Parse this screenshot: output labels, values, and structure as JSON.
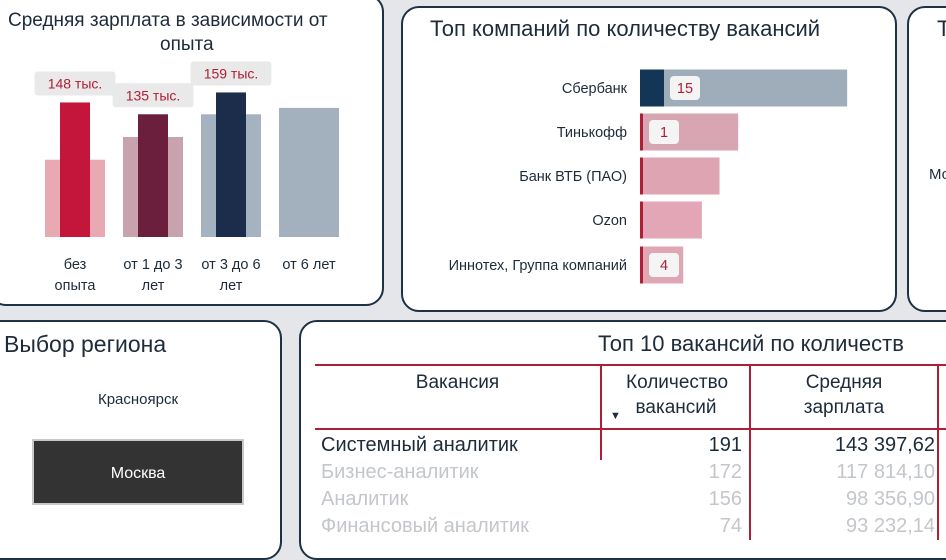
{
  "salary_card": {
    "title_line1": "Средняя зарплата в зависимости от",
    "title_line2": "опыта"
  },
  "companies_card": {
    "title": "Топ компаний по количеству вакансий"
  },
  "clipped_card": {
    "title_fragment": "Т",
    "label_fragment": "Мо"
  },
  "region_card": {
    "title": "Выбор региона",
    "options": [
      "Красноярск",
      "Москва"
    ],
    "selected": "Москва"
  },
  "table_card": {
    "title": "Топ 10 вакансий по количеств",
    "columns": [
      "Вакансия",
      "Количество вакансий",
      "Средняя зарплата"
    ],
    "sort_indicator": "▼",
    "rows": [
      {
        "name": "Системный аналитик",
        "count": "191",
        "salary": "143 397,62"
      },
      {
        "name": "Бизнес-аналитик",
        "count": "172",
        "salary": "117 814,10"
      },
      {
        "name": "Аналитик",
        "count": "156",
        "salary": "98 356,90"
      },
      {
        "name": "Финансовый аналитик",
        "count": "74",
        "salary": "93 232,14"
      }
    ]
  },
  "colors": {
    "border": "#1f3145",
    "accent_red": "#b01e36",
    "navy": "#1a2b47",
    "grey_blue": "#9fadba",
    "pink": "#dea4b1"
  },
  "chart_data": [
    {
      "type": "bar",
      "title": "Средняя зарплата в зависимости от опыта",
      "categories": [
        "без опыта",
        "от 1 до 3 лет",
        "от 3 до 6 лет",
        "от 6 лет"
      ],
      "series": [
        {
          "values": [
            148,
            135,
            159,
            null
          ],
          "labels": [
            "148 тыс.",
            "135 тыс.",
            "159 тыс.",
            ""
          ]
        },
        {
          "values": [
            85,
            110,
            135,
            142
          ]
        }
      ],
      "ylim": [
        0,
        165
      ],
      "bar_colors": [
        "#c4163a",
        "#6b1f3c",
        "#1c2d4c",
        "#a3b1bf"
      ],
      "back_colors": [
        "#e8a9b3",
        "#c8a2ad",
        "#a5b3c0",
        "#a3b1bf"
      ]
    },
    {
      "type": "bar",
      "orientation": "horizontal",
      "title": "Топ компаний по количеству вакансий",
      "categories": [
        "Сбербанк",
        "Тинькофф",
        "Банк ВТБ (ПАО)",
        "Ozon",
        "Иннотех, Группа компаний"
      ],
      "series": [
        {
          "values": [
            15,
            1,
            null,
            null,
            4
          ],
          "labels": [
            "15",
            "1",
            "",
            "",
            "4"
          ]
        },
        {
          "values": [
            211,
            100,
            81,
            63,
            44
          ]
        }
      ],
      "xlim": [
        0,
        220
      ],
      "bar_colors": [
        "#9fadba",
        "#d8a5b3",
        "#dea4b1",
        "#e3a6b6",
        "#dfa6b4"
      ],
      "accent_colors": [
        "#133657",
        "#b01e36",
        "#b01e36",
        "#b01e36",
        "#b01e36"
      ]
    }
  ]
}
